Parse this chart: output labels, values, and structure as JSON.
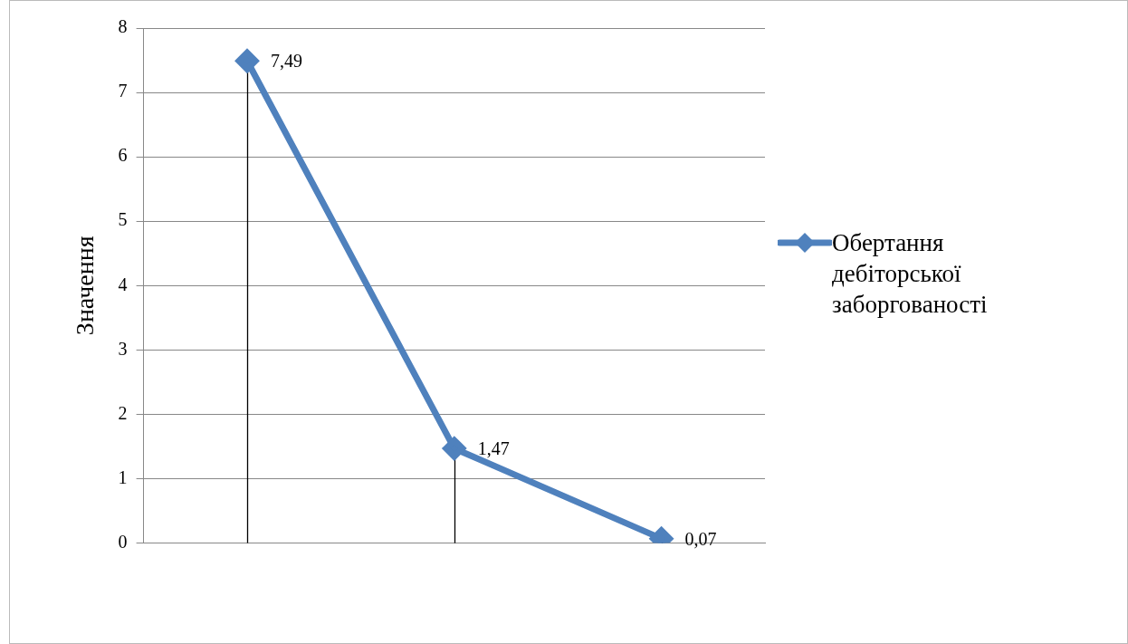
{
  "chart_data": {
    "type": "line",
    "ylabel": "Значення",
    "categories": [
      null,
      null,
      null
    ],
    "series": [
      {
        "name": "Обертання дебіторської заборгованості",
        "color": "#4f81bd",
        "values": [
          7.49,
          1.47,
          0.07
        ],
        "value_labels": [
          "7,49",
          "1,47",
          "0,07"
        ]
      }
    ],
    "ylim": [
      0,
      8
    ],
    "yticks": [
      0,
      1,
      2,
      3,
      4,
      5,
      6,
      7,
      8
    ],
    "grid": "y",
    "legend": "right",
    "marker": "diamond",
    "line_style": "solid"
  }
}
